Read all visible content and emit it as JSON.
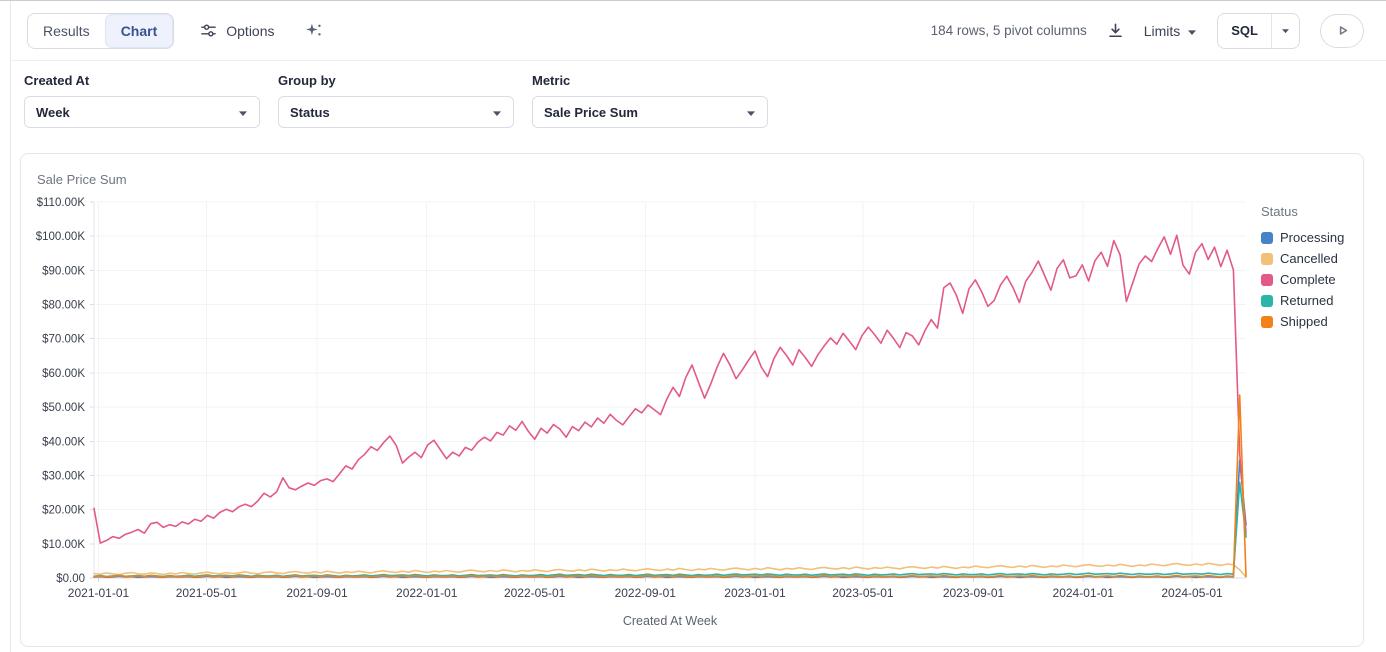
{
  "toolbar": {
    "tabs": [
      {
        "label": "Results",
        "active": false
      },
      {
        "label": "Chart",
        "active": true
      }
    ],
    "options_label": "Options",
    "rows_info": "184 rows, 5 pivot columns",
    "limits_label": "Limits",
    "sql_label": "SQL",
    "icons": {
      "options": "sliders-icon",
      "ai_assist": "sparkles-icon",
      "export": "download-icon",
      "limits": "caret-down-icon",
      "sql_menu": "caret-down-icon",
      "run": "play-icon"
    },
    "colors": {
      "active_tab_bg": "#edf2fc",
      "active_tab_text": "#3a5390"
    }
  },
  "controls": {
    "created_at": {
      "label": "Created At",
      "value": "Week"
    },
    "group_by": {
      "label": "Group by",
      "value": "Status"
    },
    "metric": {
      "label": "Metric",
      "value": "Sale Price Sum"
    }
  },
  "chart_data": {
    "type": "line",
    "title": "Sale Price Sum",
    "xlabel": "Created At Week",
    "legend_title": "Status",
    "legend_position": "right",
    "grid": true,
    "unit": "USD thousands",
    "ylim": [
      0,
      110
    ],
    "n": 184,
    "start_week": "2020-12-27",
    "y_ticks": [
      {
        "value": 0,
        "label": "$0.00"
      },
      {
        "value": 10,
        "label": "$10.00K"
      },
      {
        "value": 20,
        "label": "$20.00K"
      },
      {
        "value": 30,
        "label": "$30.00K"
      },
      {
        "value": 40,
        "label": "$40.00K"
      },
      {
        "value": 50,
        "label": "$50.00K"
      },
      {
        "value": 60,
        "label": "$60.00K"
      },
      {
        "value": 70,
        "label": "$70.00K"
      },
      {
        "value": 80,
        "label": "$80.00K"
      },
      {
        "value": 90,
        "label": "$90.00K"
      },
      {
        "value": 100,
        "label": "$100.00K"
      },
      {
        "value": 110,
        "label": "$110.00K"
      }
    ],
    "x_ticks": [
      "2021-01-01",
      "2021-05-01",
      "2021-09-01",
      "2022-01-01",
      "2022-05-01",
      "2022-09-01",
      "2023-01-01",
      "2023-05-01",
      "2023-09-01",
      "2024-01-01",
      "2024-05-01"
    ],
    "series": [
      {
        "name": "Processing",
        "color": "#4584C8",
        "values": [
          0.3,
          0.4,
          0.2,
          0.3,
          0.5,
          0.3,
          0.4,
          0.2,
          0.3,
          0.4,
          0.3,
          0.2,
          0.4,
          0.3,
          0.3,
          0.4,
          0.2,
          0.3,
          0.5,
          0.3,
          0.4,
          0.2,
          0.3,
          0.4,
          0.3,
          0.2,
          0.4,
          0.3,
          0.3,
          0.4,
          0.2,
          0.3,
          0.5,
          0.3,
          0.4,
          0.2,
          0.3,
          0.4,
          0.3,
          0.2,
          0.4,
          0.3,
          0.3,
          0.4,
          0.2,
          0.3,
          0.5,
          0.3,
          0.4,
          0.2,
          0.3,
          0.4,
          0.3,
          0.2,
          0.4,
          0.3,
          0.3,
          0.4,
          0.2,
          0.3,
          0.5,
          0.3,
          0.4,
          0.2,
          0.3,
          0.4,
          0.3,
          0.2,
          0.4,
          0.3,
          0.3,
          0.4,
          0.2,
          0.3,
          0.5,
          0.3,
          0.4,
          0.2,
          0.3,
          0.4,
          0.3,
          0.2,
          0.4,
          0.3,
          0.3,
          0.4,
          0.2,
          0.3,
          0.5,
          0.3,
          0.4,
          0.2,
          0.3,
          0.4,
          0.3,
          0.2,
          0.4,
          0.3,
          0.3,
          0.4,
          0.2,
          0.3,
          0.5,
          0.3,
          0.4,
          0.2,
          0.3,
          0.4,
          0.3,
          0.2,
          0.4,
          0.3,
          0.3,
          0.4,
          0.2,
          0.3,
          0.5,
          0.3,
          0.4,
          0.2,
          0.3,
          0.4,
          0.3,
          0.2,
          0.4,
          0.3,
          0.3,
          0.4,
          0.2,
          0.3,
          0.5,
          0.3,
          0.4,
          0.2,
          0.3,
          0.4,
          0.3,
          0.2,
          0.4,
          0.3,
          0.3,
          0.4,
          0.2,
          0.3,
          0.5,
          0.3,
          0.4,
          0.2,
          0.3,
          0.4,
          0.3,
          0.2,
          0.4,
          0.3,
          0.3,
          0.4,
          0.2,
          0.3,
          0.5,
          0.3,
          0.4,
          0.2,
          0.3,
          0.4,
          0.3,
          0.2,
          0.4,
          0.3,
          0.3,
          0.4,
          0.2,
          0.3,
          0.5,
          0.3,
          0.4,
          0.2,
          0.3,
          0.4,
          0.3,
          0.2,
          0.4,
          0.3,
          34.5,
          15.5
        ]
      },
      {
        "name": "Cancelled",
        "color": "#F2C078",
        "values": [
          1.3,
          1.1,
          1.5,
          1.2,
          1.0,
          1.4,
          1.6,
          1.2,
          1.1,
          1.5,
          1.3,
          1.0,
          1.4,
          1.2,
          1.6,
          1.3,
          1.1,
          1.5,
          1.7,
          1.4,
          1.2,
          1.6,
          1.3,
          1.5,
          1.8,
          1.4,
          1.2,
          1.6,
          1.8,
          1.5,
          1.3,
          1.7,
          1.9,
          1.6,
          1.4,
          1.8,
          1.5,
          2.0,
          1.7,
          1.4,
          1.8,
          1.6,
          2.0,
          1.7,
          1.5,
          1.9,
          2.1,
          1.8,
          1.6,
          2.0,
          1.7,
          2.2,
          1.9,
          1.6,
          2.0,
          1.8,
          2.2,
          1.9,
          1.7,
          2.1,
          2.3,
          2.0,
          1.8,
          2.2,
          1.9,
          2.4,
          2.1,
          1.8,
          2.2,
          2.0,
          2.4,
          2.1,
          1.9,
          2.3,
          2.5,
          2.2,
          2.0,
          2.4,
          2.1,
          2.6,
          2.3,
          2.0,
          2.4,
          2.2,
          2.6,
          2.3,
          2.1,
          2.5,
          2.7,
          2.4,
          2.2,
          2.6,
          2.3,
          2.8,
          2.5,
          2.2,
          2.6,
          2.4,
          2.8,
          2.5,
          2.3,
          2.7,
          2.9,
          2.6,
          2.4,
          2.8,
          2.5,
          3.0,
          2.7,
          2.4,
          2.8,
          2.6,
          3.0,
          2.7,
          2.5,
          2.9,
          3.1,
          2.8,
          2.6,
          3.0,
          2.7,
          3.2,
          2.9,
          2.6,
          3.0,
          2.8,
          3.2,
          2.9,
          2.7,
          3.1,
          3.3,
          3.0,
          2.8,
          3.2,
          2.9,
          3.4,
          3.1,
          2.8,
          3.2,
          3.0,
          3.5,
          3.2,
          3.0,
          3.4,
          3.6,
          3.3,
          3.1,
          3.5,
          3.2,
          3.7,
          3.4,
          3.1,
          3.5,
          3.3,
          3.8,
          3.5,
          3.3,
          3.7,
          3.9,
          3.6,
          3.4,
          3.8,
          3.5,
          4.0,
          3.7,
          3.4,
          3.8,
          3.6,
          4.1,
          3.8,
          3.6,
          4.0,
          4.2,
          3.9,
          3.7,
          4.1,
          3.8,
          4.3,
          4.0,
          3.7,
          4.1,
          3.9,
          2.4,
          0.3
        ]
      },
      {
        "name": "Complete",
        "color": "#E25A85",
        "values": [
          20.4,
          10.2,
          11.0,
          12.1,
          11.6,
          12.8,
          13.4,
          14.2,
          13.1,
          15.9,
          16.3,
          14.8,
          15.6,
          15.1,
          16.4,
          15.8,
          17.2,
          16.6,
          18.3,
          17.5,
          19.2,
          20.1,
          19.4,
          20.8,
          21.6,
          20.9,
          22.5,
          24.8,
          23.7,
          25.2,
          29.3,
          26.4,
          25.8,
          26.9,
          27.8,
          27.1,
          28.5,
          29.0,
          28.2,
          30.5,
          32.8,
          31.9,
          34.6,
          36.2,
          38.4,
          37.3,
          39.6,
          41.5,
          38.8,
          33.6,
          35.4,
          36.8,
          35.2,
          38.9,
          40.3,
          37.6,
          34.9,
          36.8,
          35.7,
          38.2,
          37.4,
          39.8,
          41.2,
          40.1,
          42.6,
          41.8,
          44.5,
          43.2,
          45.8,
          42.9,
          40.6,
          43.8,
          42.4,
          44.9,
          43.6,
          41.2,
          44.3,
          43.1,
          45.6,
          44.2,
          46.8,
          45.3,
          47.9,
          46.1,
          44.8,
          47.2,
          49.5,
          48.3,
          50.6,
          49.2,
          47.8,
          52.4,
          55.8,
          53.1,
          58.6,
          62.3,
          57.4,
          52.6,
          56.9,
          61.8,
          65.7,
          62.4,
          58.3,
          60.9,
          63.8,
          66.4,
          61.7,
          58.9,
          64.2,
          67.5,
          65.1,
          62.3,
          66.8,
          64.5,
          61.9,
          65.3,
          67.9,
          70.2,
          68.4,
          71.6,
          69.3,
          66.8,
          70.9,
          73.4,
          71.2,
          68.7,
          72.5,
          70.1,
          67.4,
          71.8,
          70.8,
          68.2,
          72.4,
          75.6,
          73.1,
          84.9,
          86.3,
          82.7,
          77.4,
          84.6,
          87.2,
          83.8,
          79.5,
          81.2,
          85.7,
          88.3,
          84.9,
          80.6,
          86.8,
          89.4,
          92.7,
          88.5,
          84.2,
          90.6,
          93.1,
          87.8,
          88.4,
          91.6,
          86.9,
          92.8,
          95.3,
          91.2,
          98.7,
          94.5,
          80.9,
          86.3,
          91.8,
          94.2,
          92.6,
          96.4,
          99.8,
          94.7,
          100.3,
          91.5,
          88.9,
          95.3,
          97.8,
          93.2,
          96.8,
          91.1,
          95.9,
          90.1,
          36.4,
          13.2
        ]
      },
      {
        "name": "Returned",
        "color": "#2BB5A9",
        "values": [
          0.5,
          0.7,
          0.4,
          0.6,
          0.8,
          0.5,
          0.6,
          0.7,
          0.5,
          0.8,
          0.6,
          0.4,
          0.7,
          0.5,
          0.6,
          0.8,
          0.5,
          0.7,
          0.9,
          0.6,
          0.7,
          0.8,
          0.6,
          0.9,
          0.7,
          0.5,
          0.8,
          0.6,
          0.6,
          0.8,
          0.5,
          0.7,
          0.9,
          0.6,
          0.7,
          0.8,
          0.6,
          0.9,
          0.7,
          0.5,
          0.8,
          0.6,
          0.7,
          0.9,
          0.6,
          0.8,
          1.0,
          0.7,
          0.8,
          0.9,
          0.7,
          1.0,
          0.8,
          0.6,
          0.9,
          0.7,
          0.7,
          0.9,
          0.6,
          0.8,
          1.0,
          0.7,
          0.8,
          0.9,
          0.7,
          1.0,
          0.8,
          0.6,
          0.9,
          0.7,
          0.8,
          1.0,
          0.7,
          0.9,
          1.1,
          0.8,
          0.9,
          1.0,
          0.8,
          1.1,
          0.9,
          0.7,
          1.0,
          0.8,
          0.8,
          1.0,
          0.7,
          0.9,
          1.1,
          0.8,
          0.9,
          1.0,
          0.8,
          1.1,
          0.9,
          0.7,
          1.0,
          0.8,
          0.9,
          1.1,
          0.8,
          1.0,
          1.2,
          0.9,
          1.0,
          1.1,
          0.9,
          1.2,
          1.0,
          0.8,
          1.1,
          0.9,
          0.9,
          1.1,
          0.8,
          1.0,
          1.2,
          0.9,
          1.0,
          1.1,
          0.9,
          1.2,
          1.0,
          0.8,
          1.1,
          0.9,
          1.0,
          1.2,
          0.9,
          1.1,
          1.3,
          1.0,
          1.1,
          1.2,
          1.0,
          1.3,
          1.1,
          0.9,
          1.2,
          1.0,
          1.0,
          1.2,
          0.9,
          1.1,
          1.3,
          1.0,
          1.1,
          1.2,
          1.0,
          1.3,
          1.1,
          0.9,
          1.2,
          1.0,
          1.1,
          1.3,
          1.0,
          1.2,
          1.4,
          1.1,
          1.2,
          1.3,
          1.1,
          1.4,
          1.2,
          1.0,
          1.3,
          1.1,
          1.1,
          1.3,
          1.0,
          1.2,
          1.4,
          1.1,
          1.2,
          1.3,
          1.1,
          1.4,
          1.2,
          1.0,
          1.3,
          1.1,
          28.0,
          12.0
        ]
      },
      {
        "name": "Shipped",
        "color": "#F28118",
        "values": [
          0.4,
          0.6,
          0.3,
          0.5,
          0.7,
          0.4,
          0.5,
          0.6,
          0.4,
          0.7,
          0.5,
          0.3,
          0.6,
          0.4,
          0.4,
          0.6,
          0.3,
          0.5,
          0.7,
          0.4,
          0.5,
          0.6,
          0.4,
          0.7,
          0.5,
          0.3,
          0.6,
          0.4,
          0.4,
          0.6,
          0.3,
          0.5,
          0.7,
          0.4,
          0.5,
          0.6,
          0.4,
          0.7,
          0.5,
          0.3,
          0.6,
          0.4,
          0.4,
          0.6,
          0.3,
          0.5,
          0.7,
          0.4,
          0.5,
          0.6,
          0.4,
          0.7,
          0.5,
          0.3,
          0.6,
          0.4,
          0.4,
          0.6,
          0.3,
          0.5,
          0.7,
          0.4,
          0.5,
          0.6,
          0.4,
          0.7,
          0.5,
          0.3,
          0.6,
          0.4,
          0.4,
          0.6,
          0.3,
          0.5,
          0.7,
          0.4,
          0.5,
          0.6,
          0.4,
          0.7,
          0.5,
          0.3,
          0.6,
          0.4,
          0.4,
          0.6,
          0.3,
          0.5,
          0.7,
          0.4,
          0.5,
          0.6,
          0.4,
          0.7,
          0.5,
          0.3,
          0.6,
          0.4,
          0.4,
          0.6,
          0.3,
          0.5,
          0.7,
          0.4,
          0.5,
          0.6,
          0.4,
          0.7,
          0.5,
          0.3,
          0.6,
          0.4,
          0.4,
          0.6,
          0.3,
          0.5,
          0.7,
          0.4,
          0.5,
          0.6,
          0.4,
          0.7,
          0.5,
          0.3,
          0.6,
          0.4,
          0.4,
          0.6,
          0.3,
          0.5,
          0.7,
          0.4,
          0.5,
          0.6,
          0.4,
          0.7,
          0.5,
          0.3,
          0.6,
          0.4,
          0.4,
          0.6,
          0.3,
          0.5,
          0.7,
          0.4,
          0.5,
          0.6,
          0.4,
          0.7,
          0.5,
          0.3,
          0.6,
          0.4,
          0.4,
          0.6,
          0.3,
          0.5,
          0.7,
          0.4,
          0.5,
          0.6,
          0.4,
          0.7,
          0.5,
          0.3,
          0.6,
          0.4,
          0.4,
          0.6,
          0.3,
          0.5,
          0.7,
          0.4,
          0.5,
          0.6,
          0.4,
          0.7,
          0.5,
          0.3,
          0.6,
          0.4,
          53.5,
          0.5
        ]
      }
    ]
  }
}
